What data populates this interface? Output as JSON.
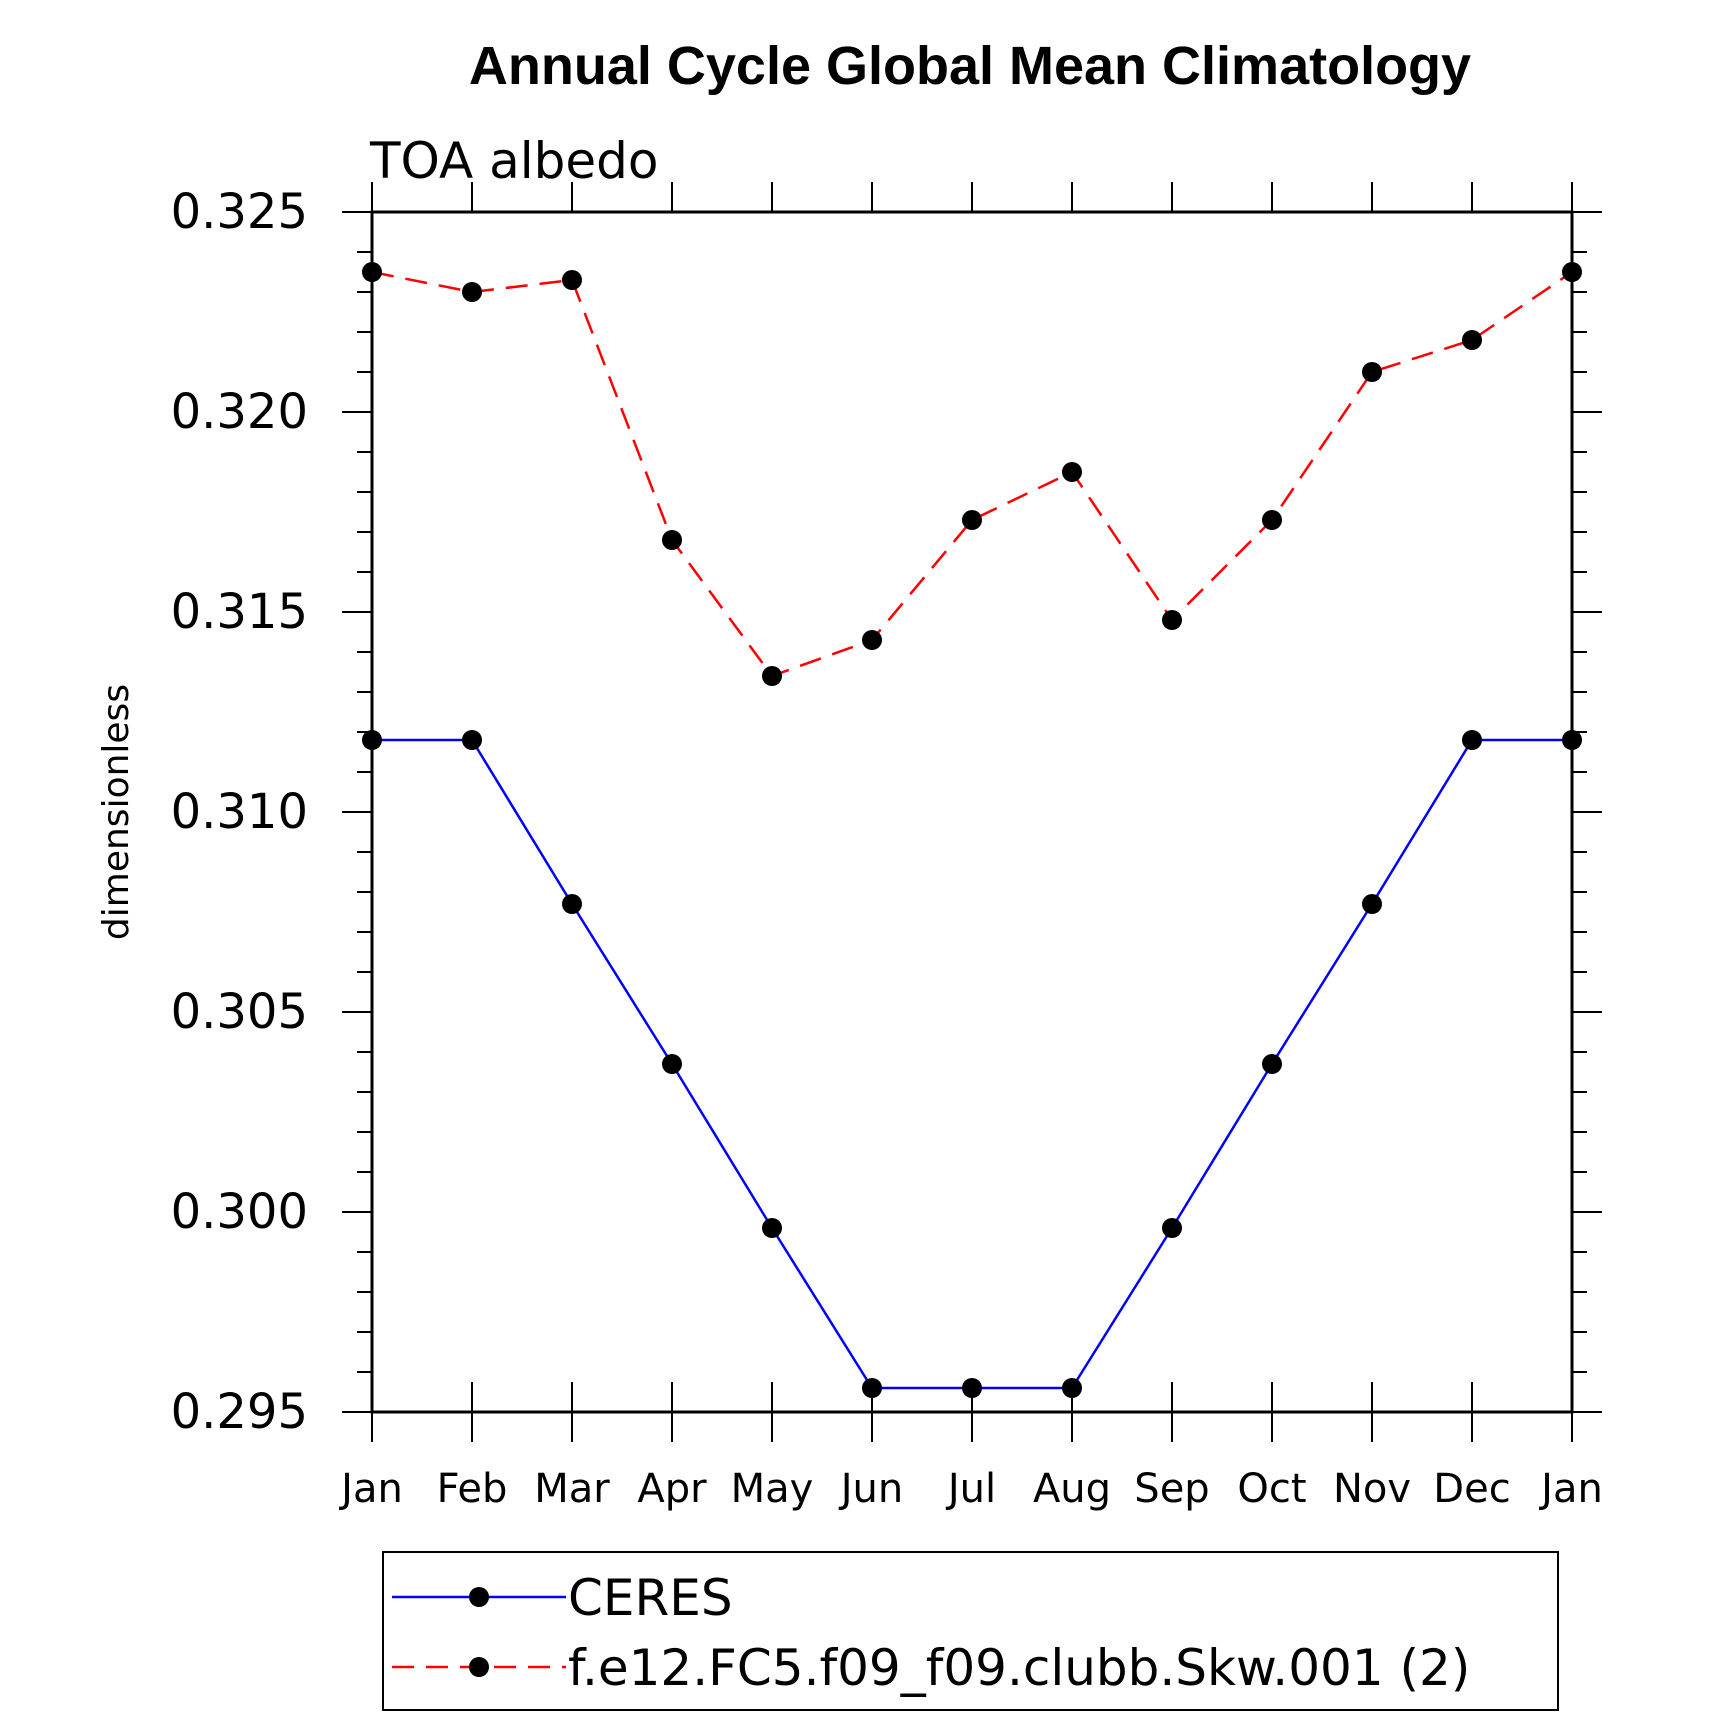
{
  "chart_data": {
    "type": "line",
    "title": "Annual Cycle Global Mean Climatology",
    "subtitle": "TOA albedo",
    "xlabel": "",
    "ylabel": "dimensionless",
    "categories": [
      "Jan",
      "Feb",
      "Mar",
      "Apr",
      "May",
      "Jun",
      "Jul",
      "Aug",
      "Sep",
      "Oct",
      "Nov",
      "Dec",
      "Jan"
    ],
    "yticks": [
      "0.295",
      "0.300",
      "0.305",
      "0.310",
      "0.315",
      "0.320",
      "0.325"
    ],
    "ylim": [
      0.295,
      0.325
    ],
    "legend_position": "bottom",
    "series": [
      {
        "name": "CERES",
        "color": "#0000ff",
        "dashed": false,
        "values": [
          0.3118,
          0.3118,
          0.3077,
          0.3037,
          0.2996,
          0.2956,
          0.2956,
          0.2956,
          0.2996,
          0.3037,
          0.3077,
          0.3118,
          0.3118
        ]
      },
      {
        "name": "f.e12.FC5.f09_f09.clubb.Skw.001 (2)",
        "color": "#ff0000",
        "dashed": true,
        "values": [
          0.3235,
          0.323,
          0.3233,
          0.3168,
          0.3134,
          0.3143,
          0.3173,
          0.3185,
          0.3148,
          0.3173,
          0.321,
          0.3218,
          0.3235
        ]
      }
    ]
  }
}
